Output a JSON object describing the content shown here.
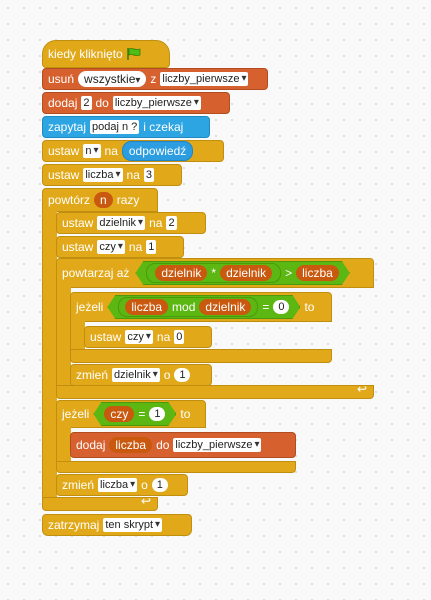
{
  "colors": {
    "events": "#e1a91a",
    "lists": "#d6602e",
    "sensing": "#2ca5e2",
    "variables": "#e1a91a",
    "operators": "#5cb712"
  },
  "script": {
    "when_clicked": "kiedy kliknięto",
    "flag_icon": "green-flag-icon",
    "delete_label": "usuń",
    "delete_which": "wszystkie",
    "delete_from": "z",
    "list_name": "liczby_pierwsze",
    "add_label": "dodaj",
    "add_value": "2",
    "add_to": "do",
    "ask_label": "zapytaj",
    "ask_text": "podaj n ?",
    "ask_wait": "i czekaj",
    "set_label": "ustaw",
    "var_n": "n",
    "to_label": "na",
    "answer": "odpowiedź",
    "var_liczba": "liczba",
    "liczba_init": "3",
    "repeat_label": "powtórz",
    "repeat_var": "n",
    "repeat_times": "razy",
    "var_dzielnik": "dzielnik",
    "dzielnik_init": "2",
    "var_czy": "czy",
    "czy_init": "1",
    "repeat_until": "powtarzaj aż",
    "op_mul": "*",
    "op_gt": ">",
    "if_label": "jeżeli",
    "mod_label": "mod",
    "op_eq": "=",
    "zero": "0",
    "then_label": "to",
    "czy_zero": "0",
    "change_label": "zmień",
    "by_label": "o",
    "one": "1",
    "if2_value": "1",
    "stop_label": "zatrzymaj",
    "stop_which": "ten skrypt"
  }
}
